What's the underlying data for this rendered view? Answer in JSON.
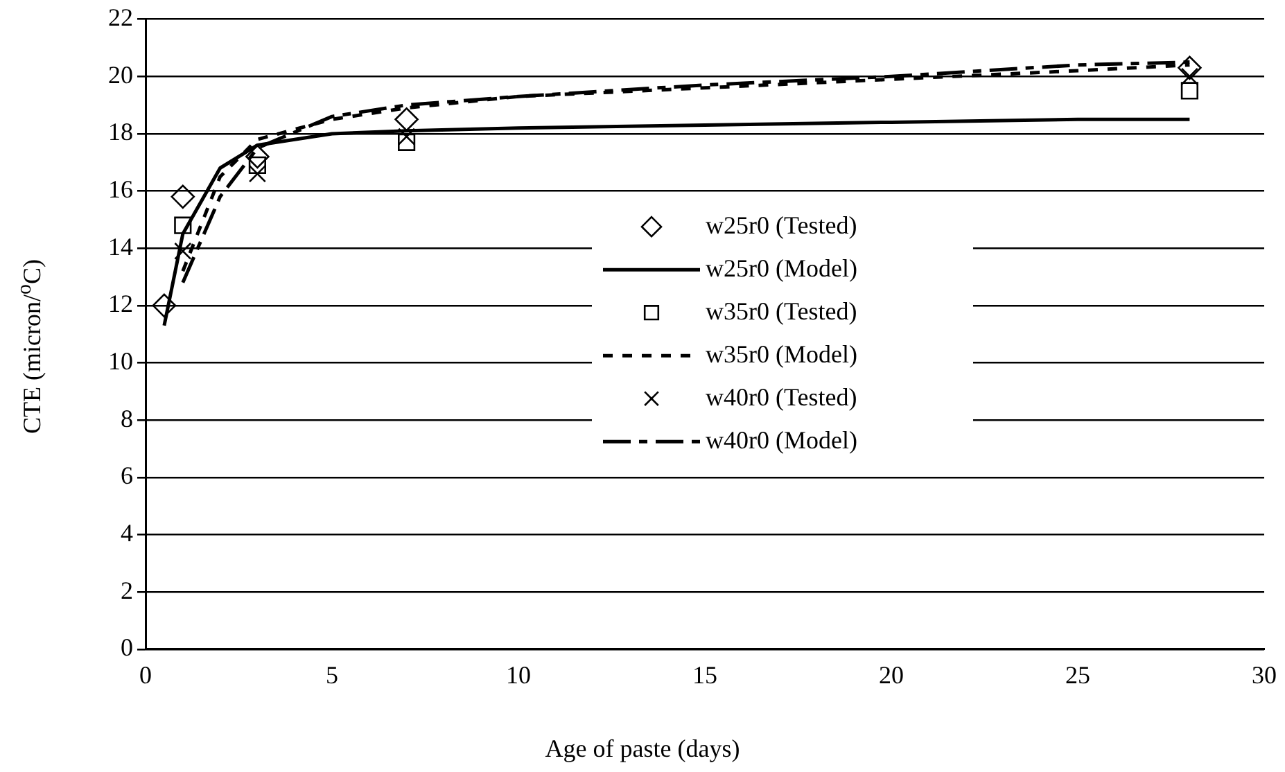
{
  "chart_data": {
    "type": "line",
    "xlabel": "Age of paste (days)",
    "ylabel": "CTE (micron/$^{o}$C)",
    "xlim": [
      0,
      30
    ],
    "xticks": [
      0,
      5,
      10,
      15,
      20,
      25,
      30
    ],
    "ylim": [
      0,
      22
    ],
    "yticks": [
      0,
      2,
      4,
      6,
      8,
      10,
      12,
      14,
      16,
      18,
      20,
      22
    ],
    "grid": "y",
    "legend": "center right",
    "series": [
      {
        "name": "w25r0 (Tested)",
        "type": "scatter",
        "marker": "diamond",
        "color": "#000000",
        "x": [
          0.5,
          1,
          3,
          7,
          28
        ],
        "values": [
          12,
          15.8,
          17.2,
          18.5,
          20.3
        ]
      },
      {
        "name": "w25r0 (Model)",
        "type": "line",
        "marker": "none",
        "line_style": "solid",
        "color": "#000000",
        "x": [
          0.5,
          1,
          2,
          3,
          5,
          7,
          10,
          15,
          20,
          25,
          28
        ],
        "values": [
          11.3,
          14.5,
          16.8,
          17.6,
          18,
          18.1,
          18.2,
          18.3,
          18.4,
          18.5,
          18.5
        ]
      },
      {
        "name": "w35r0 (Tested)",
        "type": "scatter",
        "marker": "square",
        "color": "#000000",
        "x": [
          1,
          3,
          7,
          28
        ],
        "values": [
          14.8,
          16.9,
          17.7,
          19.5
        ]
      },
      {
        "name": "w35r0 (Model)",
        "type": "line",
        "marker": "none",
        "line_style": "dotted",
        "color": "#000000",
        "x": [
          1,
          2,
          3,
          5,
          7,
          10,
          15,
          20,
          25,
          28
        ],
        "values": [
          13.2,
          16.5,
          17.8,
          18.5,
          18.9,
          19.3,
          19.6,
          19.9,
          20.2,
          20.4
        ]
      },
      {
        "name": "w40r0 (Tested)",
        "type": "scatter",
        "marker": "cross",
        "color": "#000000",
        "x": [
          1,
          3,
          7,
          28
        ],
        "values": [
          13.9,
          16.6,
          17.9,
          20
        ]
      },
      {
        "name": "w40r0 (Model)",
        "type": "line",
        "marker": "none",
        "line_style": "dashed",
        "color": "#000000",
        "x": [
          1,
          2,
          3,
          5,
          7,
          10,
          15,
          20,
          25,
          28
        ],
        "values": [
          12.8,
          15.8,
          17.5,
          18.6,
          19,
          19.3,
          19.7,
          20,
          20.4,
          20.5
        ]
      }
    ]
  }
}
